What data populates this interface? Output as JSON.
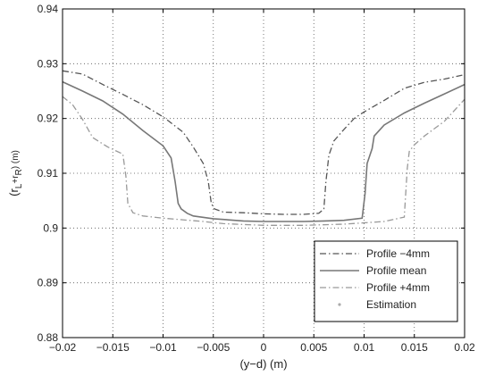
{
  "chart_data": {
    "type": "line",
    "xlabel": "(y−d) (m)",
    "ylabel": "(r_L+r_R) (m)",
    "xlim": [
      -0.02,
      0.02
    ],
    "ylim": [
      0.88,
      0.94
    ],
    "x_ticks": [
      -0.02,
      -0.015,
      -0.01,
      -0.005,
      0,
      0.005,
      0.01,
      0.015,
      0.02
    ],
    "x_tick_labels": [
      "−0.02",
      "−0.015",
      "−0.01",
      "−0.005",
      "0",
      "0.005",
      "0.01",
      "0.015",
      "0.02"
    ],
    "y_ticks": [
      0.88,
      0.89,
      0.9,
      0.91,
      0.92,
      0.93,
      0.94
    ],
    "y_tick_labels": [
      "0.88",
      "0.89",
      "0.9",
      "0.91",
      "0.92",
      "0.93",
      "0.94"
    ],
    "grid": true,
    "legend_position": "bottom-right",
    "series": [
      {
        "name": "Profile −4mm",
        "color": "#555555",
        "style": "dashdot",
        "x": [
          -0.02,
          -0.018,
          -0.016,
          -0.014,
          -0.012,
          -0.01,
          -0.008,
          -0.007,
          -0.006,
          -0.0055,
          -0.0052,
          -0.0049,
          -0.004,
          -0.002,
          0.0,
          0.002,
          0.004,
          0.0055,
          0.006,
          0.0062,
          0.0065,
          0.007,
          0.008,
          0.009,
          0.01,
          0.012,
          0.014,
          0.016,
          0.018,
          0.02
        ],
        "y": [
          0.9287,
          0.9281,
          0.9262,
          0.9244,
          0.9225,
          0.9203,
          0.9175,
          0.9148,
          0.9118,
          0.9085,
          0.9045,
          0.9035,
          0.9029,
          0.9028,
          0.9026,
          0.9025,
          0.9025,
          0.9027,
          0.9035,
          0.9085,
          0.9133,
          0.9159,
          0.918,
          0.92,
          0.9212,
          0.9233,
          0.9255,
          0.9266,
          0.9272,
          0.928
        ]
      },
      {
        "name": "Profile mean",
        "color": "#777777",
        "style": "solid",
        "x": [
          -0.02,
          -0.018,
          -0.016,
          -0.014,
          -0.012,
          -0.01,
          -0.0092,
          -0.0088,
          -0.0085,
          -0.0082,
          -0.0076,
          -0.007,
          -0.005,
          -0.002,
          0.0,
          0.002,
          0.004,
          0.006,
          0.008,
          0.0098,
          0.0101,
          0.0103,
          0.0108,
          0.011,
          0.012,
          0.014,
          0.016,
          0.018,
          0.02
        ],
        "y": [
          0.9267,
          0.925,
          0.9232,
          0.9208,
          0.9178,
          0.915,
          0.9128,
          0.9085,
          0.9045,
          0.9035,
          0.9027,
          0.9022,
          0.9017,
          0.9013,
          0.9012,
          0.9012,
          0.9012,
          0.9013,
          0.9014,
          0.9018,
          0.9063,
          0.9118,
          0.9145,
          0.9168,
          0.9188,
          0.921,
          0.9228,
          0.9245,
          0.9262
        ]
      },
      {
        "name": "Profile +4mm",
        "color": "#999999",
        "style": "dashdot",
        "x": [
          -0.02,
          -0.019,
          -0.018,
          -0.017,
          -0.0155,
          -0.014,
          -0.0137,
          -0.0135,
          -0.013,
          -0.012,
          -0.01,
          -0.006,
          -0.004,
          0.0,
          0.004,
          0.008,
          0.012,
          0.014,
          0.0141,
          0.0143,
          0.0145,
          0.015,
          0.016,
          0.018,
          0.02
        ],
        "y": [
          0.924,
          0.9225,
          0.9198,
          0.9165,
          0.9148,
          0.9135,
          0.9095,
          0.9045,
          0.9028,
          0.9022,
          0.9018,
          0.9012,
          0.9008,
          0.9005,
          0.9005,
          0.9007,
          0.9012,
          0.902,
          0.905,
          0.911,
          0.914,
          0.9152,
          0.9168,
          0.9195,
          0.9235
        ]
      },
      {
        "name": "Estimation",
        "color": "#aaaaaa",
        "style": "dots",
        "x": [],
        "y": []
      }
    ]
  }
}
